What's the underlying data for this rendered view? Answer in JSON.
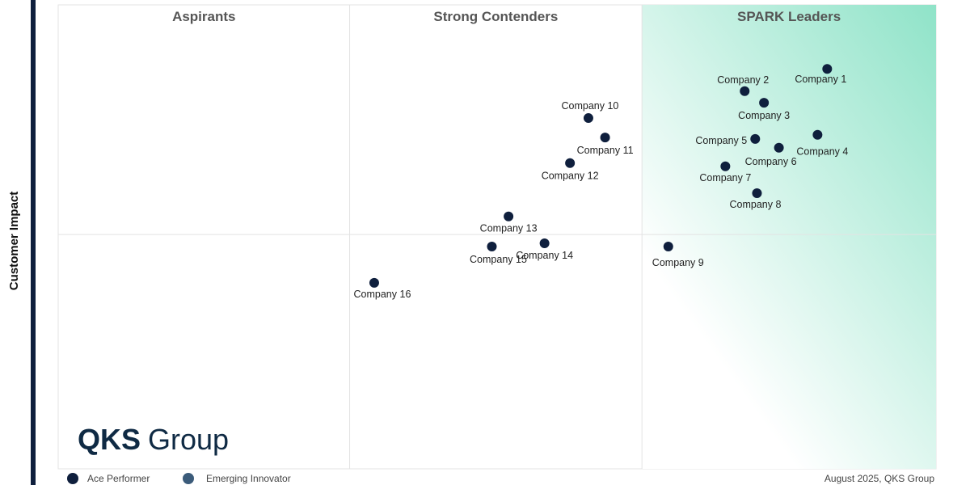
{
  "chart_data": {
    "type": "scatter",
    "y_label": "Customer Impact",
    "quadrant_labels": [
      "Aspirants",
      "Strong Contenders",
      "SPARK Leaders"
    ],
    "xlim": [
      0,
      100
    ],
    "ylim": [
      0,
      100
    ],
    "dividers": {
      "x": [
        33.2,
        66.5
      ],
      "y": 50.5
    },
    "color": "#0f1f3d",
    "points": [
      {
        "name": "Company 1",
        "x": 87.6,
        "y": 86.2
      },
      {
        "name": "Company 2",
        "x": 78.2,
        "y": 81.4
      },
      {
        "name": "Company 3",
        "x": 80.4,
        "y": 78.9
      },
      {
        "name": "Company 4",
        "x": 86.5,
        "y": 72.0
      },
      {
        "name": "Company 5",
        "x": 79.4,
        "y": 71.1
      },
      {
        "name": "Company 6",
        "x": 82.1,
        "y": 69.2
      },
      {
        "name": "Company 7",
        "x": 76.0,
        "y": 65.2
      },
      {
        "name": "Company 8",
        "x": 79.6,
        "y": 59.4
      },
      {
        "name": "Company 9",
        "x": 69.5,
        "y": 47.9
      },
      {
        "name": "Company 10",
        "x": 60.4,
        "y": 75.6
      },
      {
        "name": "Company 11",
        "x": 62.3,
        "y": 71.4
      },
      {
        "name": "Company 12",
        "x": 58.3,
        "y": 65.9
      },
      {
        "name": "Company 13",
        "x": 51.3,
        "y": 54.4
      },
      {
        "name": "Company 14",
        "x": 55.4,
        "y": 48.6
      },
      {
        "name": "Company 15",
        "x": 49.4,
        "y": 47.9
      },
      {
        "name": "Company 16",
        "x": 36.0,
        "y": 40.1
      }
    ],
    "legend": [
      "Ace Performer",
      "Emerging Innovator"
    ],
    "source": "August 2025, QKS Group"
  },
  "logo": {
    "brand": "QKS",
    "name": "Group"
  }
}
